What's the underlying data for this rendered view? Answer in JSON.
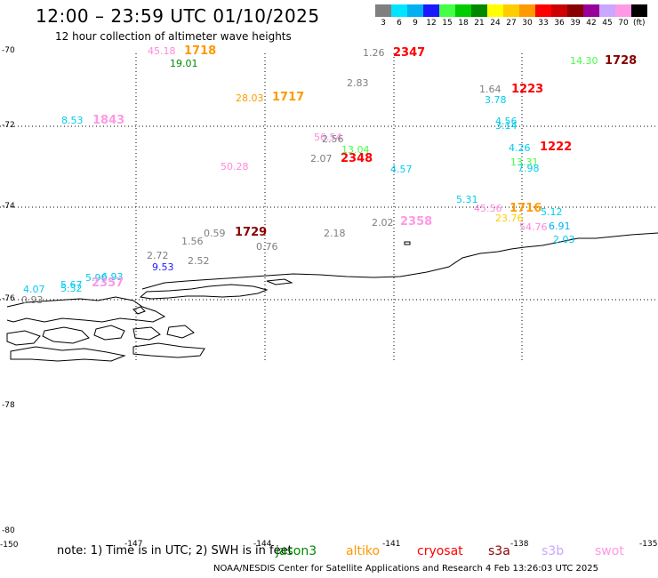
{
  "title": "12:00 – 23:59 UTC 01/10/2025",
  "subtitle": "12 hour collection of altimeter wave heights",
  "legend": {
    "unit": "(ft)",
    "bins": [
      {
        "label": "3",
        "color": "#7f7f7f"
      },
      {
        "label": "6",
        "color": "#00e5ff"
      },
      {
        "label": "9",
        "color": "#00b0f0"
      },
      {
        "label": "12",
        "color": "#1a1aff"
      },
      {
        "label": "15",
        "color": "#44ff44"
      },
      {
        "label": "18",
        "color": "#00cc00"
      },
      {
        "label": "21",
        "color": "#008800"
      },
      {
        "label": "24",
        "color": "#ffff00"
      },
      {
        "label": "27",
        "color": "#ffcc00"
      },
      {
        "label": "30",
        "color": "#ff9900"
      },
      {
        "label": "33",
        "color": "#ff0000"
      },
      {
        "label": "36",
        "color": "#cc0000"
      },
      {
        "label": "39",
        "color": "#880000"
      },
      {
        "label": "42",
        "color": "#990099"
      },
      {
        "label": "45",
        "color": "#c9a6ff"
      },
      {
        "label": "70",
        "color": "#ff99e6"
      },
      {
        "label": "",
        "color": "#000000"
      }
    ]
  },
  "lat_labels": [
    "-70",
    "-72",
    "-74",
    "-76",
    "-78",
    "-80"
  ],
  "lon_labels": [
    "-150",
    "-147",
    "-144",
    "-141",
    "-138",
    "-135"
  ],
  "observations": [
    {
      "text": "45.18",
      "color": "#ff88dd",
      "kind": "lbl"
    },
    {
      "text": "1718",
      "color": "#ff9900",
      "kind": "sat"
    },
    {
      "text": "19.01",
      "color": "#008800",
      "kind": "lbl"
    },
    {
      "text": "1.26",
      "color": "#7f7f7f",
      "kind": "lbl"
    },
    {
      "text": "2347",
      "color": "#ff0000",
      "kind": "sat"
    },
    {
      "text": "14.30",
      "color": "#44ff44",
      "kind": "lbl"
    },
    {
      "text": "1728",
      "color": "#880000",
      "kind": "sat"
    },
    {
      "text": "2.83",
      "color": "#7f7f7f",
      "kind": "lbl"
    },
    {
      "text": "28.03",
      "color": "#ff9900",
      "kind": "lbl"
    },
    {
      "text": "1717",
      "color": "#ff9900",
      "kind": "sat"
    },
    {
      "text": "1.64",
      "color": "#7f7f7f",
      "kind": "lbl"
    },
    {
      "text": "1223",
      "color": "#ff0000",
      "kind": "sat"
    },
    {
      "text": "3.78",
      "color": "#00ccee",
      "kind": "lbl"
    },
    {
      "text": "8.53",
      "color": "#00ccee",
      "kind": "lbl"
    },
    {
      "text": "1843",
      "color": "#ff99e6",
      "kind": "sat"
    },
    {
      "text": "4.56",
      "color": "#00ccee",
      "kind": "lbl"
    },
    {
      "text": "3.14",
      "color": "#00ccee",
      "kind": "lbl"
    },
    {
      "text": "56.54",
      "color": "#ff88dd",
      "kind": "lbl"
    },
    {
      "text": "2.56",
      "color": "#7f7f7f",
      "kind": "lbl"
    },
    {
      "text": "13.04",
      "color": "#44ff44",
      "kind": "lbl"
    },
    {
      "text": "4.26",
      "color": "#00ccee",
      "kind": "lbl"
    },
    {
      "text": "1222",
      "color": "#ff0000",
      "kind": "sat"
    },
    {
      "text": "2.07",
      "color": "#7f7f7f",
      "kind": "lbl"
    },
    {
      "text": "2348",
      "color": "#ff0000",
      "kind": "sat"
    },
    {
      "text": "13.31",
      "color": "#44ff44",
      "kind": "lbl"
    },
    {
      "text": "7.98",
      "color": "#00ccee",
      "kind": "lbl"
    },
    {
      "text": "50.28",
      "color": "#ff88dd",
      "kind": "lbl"
    },
    {
      "text": "4.57",
      "color": "#00ccee",
      "kind": "lbl"
    },
    {
      "text": "5.31",
      "color": "#00ccee",
      "kind": "lbl"
    },
    {
      "text": "45.56",
      "color": "#ff88dd",
      "kind": "lbl"
    },
    {
      "text": "1716",
      "color": "#ff9900",
      "kind": "sat"
    },
    {
      "text": "5.12",
      "color": "#00ccee",
      "kind": "lbl"
    },
    {
      "text": "23.76",
      "color": "#ffcc00",
      "kind": "lbl"
    },
    {
      "text": "6.91",
      "color": "#00b0f0",
      "kind": "lbl"
    },
    {
      "text": "2.02",
      "color": "#7f7f7f",
      "kind": "lbl"
    },
    {
      "text": "2358",
      "color": "#ff99e6",
      "kind": "sat"
    },
    {
      "text": "54.76",
      "color": "#ff88dd",
      "kind": "lbl"
    },
    {
      "text": "2.03",
      "color": "#00ccee",
      "kind": "lbl"
    },
    {
      "text": "0.59",
      "color": "#7f7f7f",
      "kind": "lbl"
    },
    {
      "text": "1729",
      "color": "#880000",
      "kind": "sat"
    },
    {
      "text": "2.18",
      "color": "#7f7f7f",
      "kind": "lbl"
    },
    {
      "text": "1.56",
      "color": "#7f7f7f",
      "kind": "lbl"
    },
    {
      "text": "0.76",
      "color": "#7f7f7f",
      "kind": "lbl"
    },
    {
      "text": "2.72",
      "color": "#7f7f7f",
      "kind": "lbl"
    },
    {
      "text": "9.53",
      "color": "#1a1aff",
      "kind": "lbl"
    },
    {
      "text": "2.52",
      "color": "#7f7f7f",
      "kind": "lbl"
    },
    {
      "text": "5.90",
      "color": "#00ccee",
      "kind": "lbl"
    },
    {
      "text": "6.93",
      "color": "#00ccee",
      "kind": "lbl"
    },
    {
      "text": "5.67",
      "color": "#00ccee",
      "kind": "lbl"
    },
    {
      "text": "2357",
      "color": "#ff99e6",
      "kind": "sat"
    },
    {
      "text": "4.07",
      "color": "#00ccee",
      "kind": "lbl"
    },
    {
      "text": "5.32",
      "color": "#00ccee",
      "kind": "lbl"
    },
    {
      "text": "0.93",
      "color": "#7f7f7f",
      "kind": "lbl"
    }
  ],
  "note": "note:  1) Time is in UTC;  2) SWH is in feet",
  "missions": [
    {
      "label": "jason3",
      "color": "#008800"
    },
    {
      "label": "altiko",
      "color": "#ff9900"
    },
    {
      "label": "cryosat",
      "color": "#ff0000"
    },
    {
      "label": "s3a",
      "color": "#880000"
    },
    {
      "label": "s3b",
      "color": "#c9a6ff"
    },
    {
      "label": "swot",
      "color": "#ff99e6"
    }
  ],
  "credit": "NOAA/NESDIS Center for Satellite Applications and Research    4 Feb 13:26:03 UTC 2025"
}
